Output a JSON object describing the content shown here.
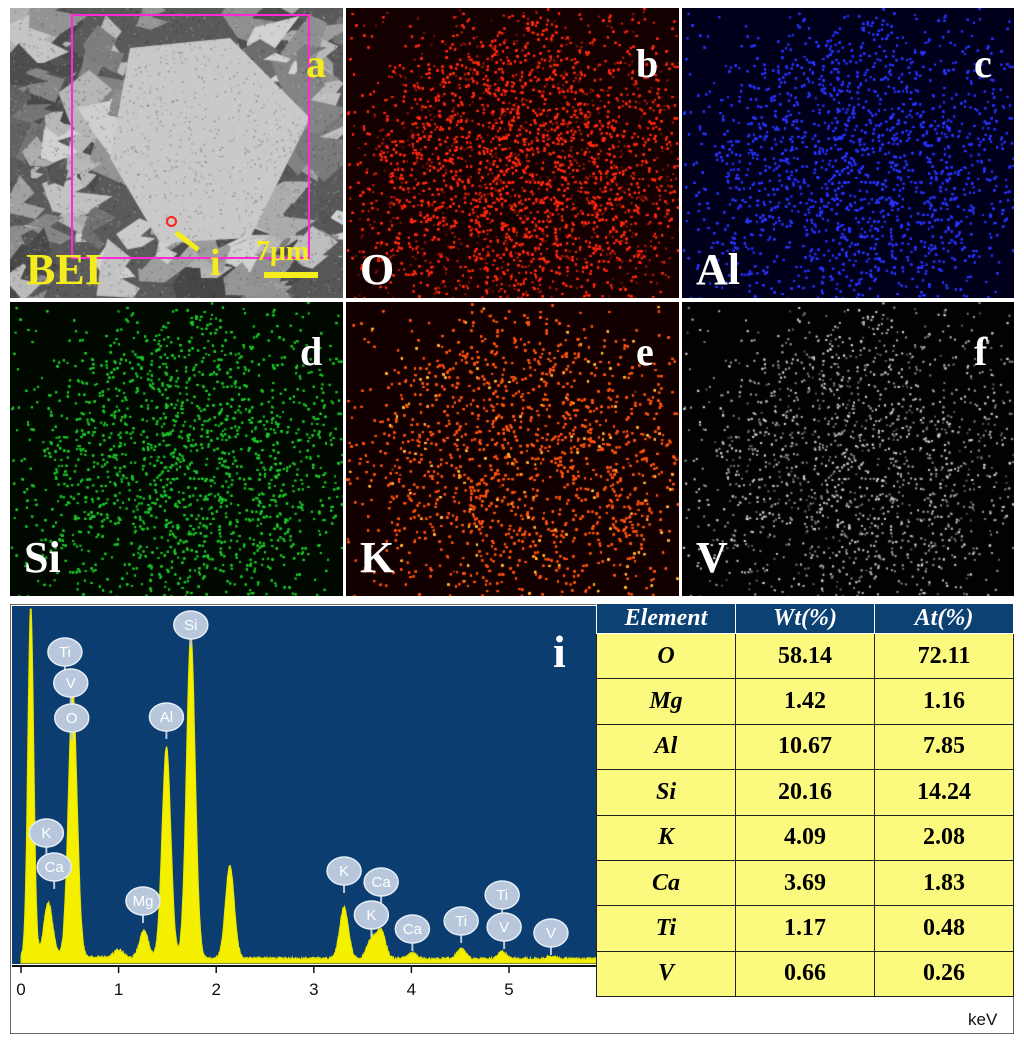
{
  "panels": {
    "a": {
      "letter": "a",
      "label": "BEI",
      "scalebar": "7μm",
      "point": "i"
    },
    "b": {
      "letter": "b",
      "element": "O",
      "color": "#ff2a10"
    },
    "c": {
      "letter": "c",
      "element": "Al",
      "color": "#2a35ff"
    },
    "d": {
      "letter": "d",
      "element": "Si",
      "color": "#1fc82a"
    },
    "e": {
      "letter": "e",
      "element": "K",
      "color": "#ff5510"
    },
    "f": {
      "letter": "f",
      "element": "V",
      "color": "#d8d8d8"
    }
  },
  "spectrum": {
    "panel_letter": "i",
    "x_unit": "keV",
    "x_ticks": [
      "0",
      "1",
      "2",
      "3",
      "4",
      "5"
    ],
    "background": "#0b3d70",
    "trace_color": "#f4f000",
    "peak_labels": [
      {
        "text": "Ti",
        "kev": 0.45
      },
      {
        "text": "V",
        "kev": 0.51
      },
      {
        "text": "O",
        "kev": 0.52
      },
      {
        "text": "K",
        "kev": 0.26
      },
      {
        "text": "Ca",
        "kev": 0.34
      },
      {
        "text": "Mg",
        "kev": 1.25
      },
      {
        "text": "Al",
        "kev": 1.49
      },
      {
        "text": "Si",
        "kev": 1.74
      },
      {
        "text": "K",
        "kev": 3.31
      },
      {
        "text": "Ca",
        "kev": 3.69
      },
      {
        "text": "K",
        "kev": 3.59
      },
      {
        "text": "Ca",
        "kev": 4.01
      },
      {
        "text": "Ti",
        "kev": 4.51
      },
      {
        "text": "Ti",
        "kev": 4.93
      },
      {
        "text": "V",
        "kev": 4.95
      },
      {
        "text": "V",
        "kev": 5.43
      }
    ]
  },
  "chart_data": {
    "type": "line",
    "title": "",
    "xlabel": "keV",
    "ylabel": "",
    "xlim": [
      0,
      5.9
    ],
    "x": [
      0.1,
      0.28,
      0.53,
      1.0,
      1.26,
      1.49,
      1.74,
      2.14,
      3.31,
      3.59,
      3.69,
      4.01,
      4.51,
      4.93,
      5.43
    ],
    "series": [
      {
        "values": [
          360,
          55,
          270,
          8,
          28,
          215,
          330,
          95,
          52,
          20,
          28,
          6,
          10,
          7,
          3
        ]
      }
    ]
  },
  "table": {
    "headers": [
      "Element",
      "Wt(%)",
      "At(%)"
    ],
    "rows": [
      [
        "O",
        "58.14",
        "72.11"
      ],
      [
        "Mg",
        "1.42",
        "1.16"
      ],
      [
        "Al",
        "10.67",
        "7.85"
      ],
      [
        "Si",
        "20.16",
        "14.24"
      ],
      [
        "K",
        "4.09",
        "2.08"
      ],
      [
        "Ca",
        "3.69",
        "1.83"
      ],
      [
        "Ti",
        "1.17",
        "0.48"
      ],
      [
        "V",
        "0.66",
        "0.26"
      ]
    ]
  }
}
